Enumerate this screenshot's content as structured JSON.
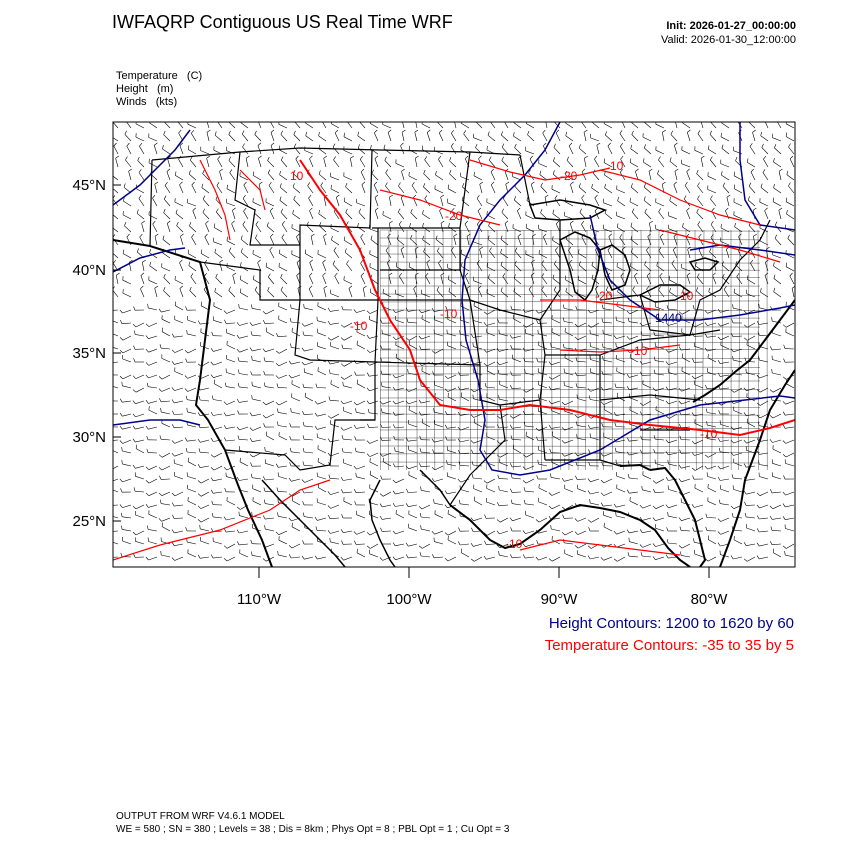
{
  "header": {
    "title": "IWFAQRP Contiguous US Real Time WRF",
    "init": "Init: 2026-01-27_00:00:00",
    "valid": "Valid: 2026-01-30_12:00:00"
  },
  "fields": [
    "Temperature   (C)",
    "Height   (m)",
    "Winds   (kts)"
  ],
  "map": {
    "lat_labels": [
      "45°N",
      "40°N",
      "35°N",
      "30°N",
      "25°N"
    ],
    "lon_labels": [
      "110°W",
      "100°W",
      "90°W",
      "80°W"
    ],
    "temp_labels": [
      "-20",
      "-20",
      "-20",
      "-10",
      "-10",
      "-10",
      "-10",
      "-10",
      "10",
      "10",
      "10"
    ],
    "height_labels": [
      "1440"
    ],
    "height_color": "#00008b",
    "temp_color": "#ff0000"
  },
  "contour_key": {
    "height": "Height Contours: 1200 to 1620 by 60",
    "temperature": "Temperature Contours: -35 to 35 by 5"
  },
  "footer": {
    "line1": "OUTPUT FROM WRF V4.6.1 MODEL",
    "line2": "WE = 580 ; SN = 380 ; Levels = 38 ; Dis = 8km ; Phys Opt = 8 ; PBL Opt = 1 ; Cu Opt = 3"
  }
}
